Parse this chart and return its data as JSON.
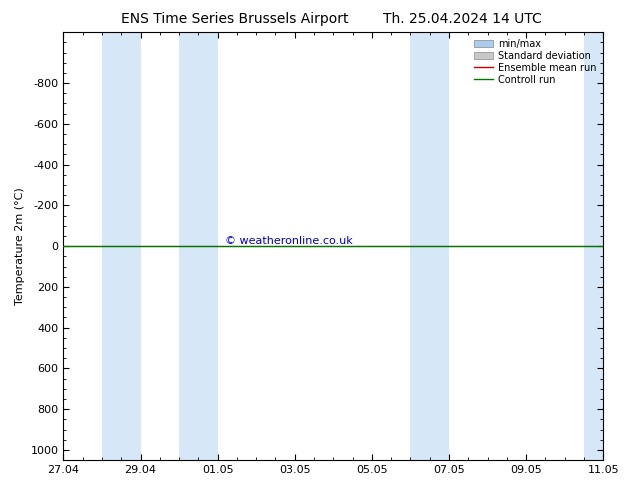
{
  "title_left": "ENS Time Series Brussels Airport",
  "title_right": "Th. 25.04.2024 14 UTC",
  "ylabel": "Temperature 2m (°C)",
  "watermark": "© weatheronline.co.uk",
  "ylim_top": -1050,
  "ylim_bottom": 1050,
  "yticks": [
    -800,
    -600,
    -400,
    -200,
    0,
    200,
    400,
    600,
    800,
    1000
  ],
  "ytick_labels": [
    "-800",
    "-600",
    "-400",
    "-200",
    "0",
    "200",
    "400",
    "600",
    "800",
    "1000"
  ],
  "xlim_left": 0,
  "xlim_right": 14,
  "xtick_positions": [
    0,
    2,
    4,
    6,
    8,
    10,
    12,
    14
  ],
  "xtick_labels": [
    "27.04",
    "29.04",
    "01.05",
    "03.05",
    "05.05",
    "07.05",
    "09.05",
    "11.05"
  ],
  "shaded_bands": [
    [
      1.0,
      2.0
    ],
    [
      3.0,
      4.0
    ],
    [
      9.0,
      10.0
    ],
    [
      13.5,
      14.0
    ]
  ],
  "shaded_color": "#d6e8f7",
  "line_y_value": 0,
  "ensemble_mean_color": "#cc0000",
  "control_run_color": "#007700",
  "std_dev_color": "#c8c8c8",
  "minmax_color": "#aaccee",
  "background_color": "#ffffff",
  "plot_bg_color": "#ffffff",
  "legend_entries": [
    "min/max",
    "Standard deviation",
    "Ensemble mean run",
    "Controll run"
  ],
  "legend_minmax_color": "#aaccee",
  "legend_std_color": "#c8c8c8",
  "title_fontsize": 10,
  "tick_fontsize": 8,
  "ylabel_fontsize": 8,
  "watermark_color": "#0000cc",
  "watermark_fontsize": 8
}
